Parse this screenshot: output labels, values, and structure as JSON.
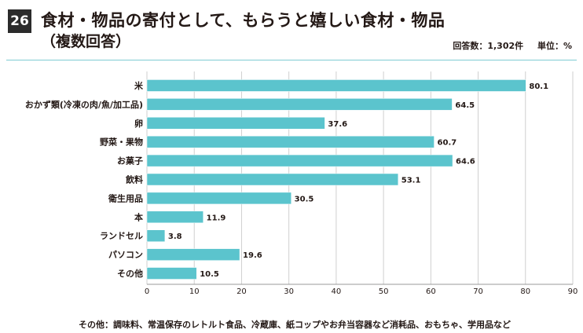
{
  "header": {
    "number": "26",
    "title": "食材・物品の寄付として、もらうと嬉しい食材・物品",
    "subtitle": "（複数回答）",
    "responses": "回答数：1,302件",
    "unit": "単位：%"
  },
  "chart_data": {
    "type": "bar",
    "orientation": "horizontal",
    "categories": [
      "米",
      "おかず類(冷凍の肉/魚/加工品)",
      "卵",
      "野菜・果物",
      "お菓子",
      "飲料",
      "衛生用品",
      "本",
      "ランドセル",
      "パソコン",
      "その他"
    ],
    "values": [
      80.1,
      64.5,
      37.6,
      60.7,
      64.6,
      53.1,
      30.5,
      11.9,
      3.8,
      19.6,
      10.5
    ],
    "xlim": [
      0,
      90
    ],
    "xticks": [
      0,
      10,
      20,
      30,
      40,
      50,
      60,
      70,
      80,
      90
    ],
    "grid": true,
    "bar_color": "#5bc4cd",
    "grid_color": "#cfcfcf"
  },
  "footnote": "その他：調味料、常温保存のレトルト食品、冷蔵庫、紙コップやお弁当容器など消耗品、おもちゃ、学用品など"
}
